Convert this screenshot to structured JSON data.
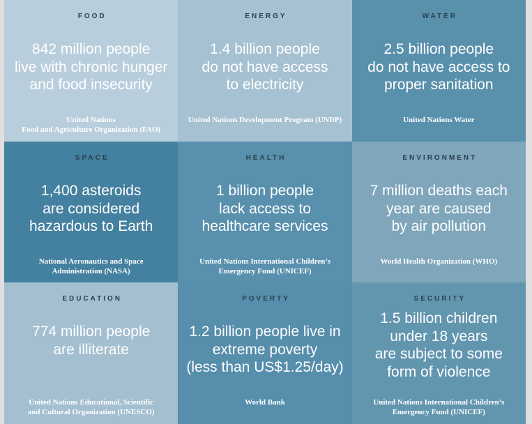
{
  "colors": {
    "page_background": "#e0dfe0",
    "category_label": "#2b4051",
    "text": "#ffffff"
  },
  "tiles": [
    {
      "category": "FOOD",
      "statistic": "842 million people\nlive with chronic hunger\nand food insecurity",
      "source": "United Nations\nFood and Agriculture Organization (FAO)",
      "bg": "#b9cedc"
    },
    {
      "category": "ENERGY",
      "statistic": "1.4 billion people\ndo not have access\nto electricity",
      "source": "United Nations Development Program (UNDP)",
      "bg": "#a6c1d1"
    },
    {
      "category": "WATER",
      "statistic": "2.5 billion people\ndo not have access to\nproper sanitation",
      "source": "United Nations Water",
      "bg": "#5991ac"
    },
    {
      "category": "SPACE",
      "statistic": "1,400 asteroids\nare considered\nhazardous to Earth",
      "source": "National Aeronautics and Space\nAdministration (NASA)",
      "bg": "#44809f"
    },
    {
      "category": "HEALTH",
      "statistic": "1 billion people\nlack access to\nhealthcare services",
      "source": "United Nations International Children’s\nEmergency Fund (UNICEF)",
      "bg": "#5890ad"
    },
    {
      "category": "ENVIRONMENT",
      "statistic": "7 million deaths each\nyear are caused\nby air pollution",
      "source": "World Health Organization (WHO)",
      "bg": "#7fa6bb"
    },
    {
      "category": "EDUCATION",
      "statistic": "774 million people\nare illiterate",
      "source": "United Nations Educational, Scientific\nand Cultural Organization (UNESCO)",
      "bg": "#a3bfd0"
    },
    {
      "category": "POVERTY",
      "statistic": "1.2 billion people live in\nextreme poverty\n(less than US$1.25/day)",
      "source": "World Bank",
      "bg": "#568eac"
    },
    {
      "category": "SECURITY",
      "statistic": "1.5 billion children\nunder 18 years\nare subject to some\nform of violence",
      "source": "United Nations International Children’s\nEmergency Fund (UNICEF)",
      "bg": "#6296af"
    }
  ]
}
